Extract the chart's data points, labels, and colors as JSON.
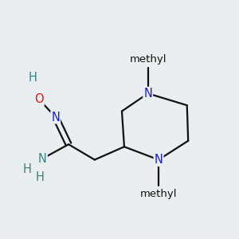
{
  "background_color": "#e9eef1",
  "colors": {
    "N": "#1a1aee",
    "O": "#ee1111",
    "C": "#111111",
    "H": "#3d8080",
    "bond": "#111111"
  },
  "figsize": [
    3.0,
    3.0
  ],
  "dpi": 100,
  "bond_width": 1.6,
  "font_size": 10.5,
  "font_size_small": 9.5
}
